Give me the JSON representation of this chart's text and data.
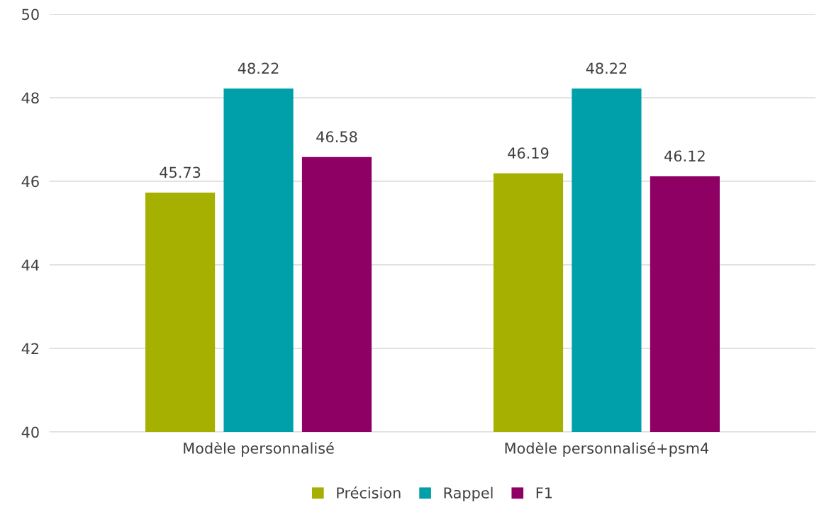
{
  "chart_data": {
    "type": "bar",
    "categories": [
      "Modèle personnalisé",
      "Modèle personnalisé+psm4"
    ],
    "series": [
      {
        "name": "Précision",
        "color": "#a5b000",
        "values": [
          45.73,
          46.19
        ]
      },
      {
        "name": "Rappel",
        "color": "#00a0aa",
        "values": [
          48.22,
          48.22
        ]
      },
      {
        "name": "F1",
        "color": "#8e0064",
        "values": [
          46.58,
          46.12
        ]
      }
    ],
    "ylim": [
      40,
      50
    ],
    "yticks": [
      40,
      42,
      44,
      46,
      48,
      50
    ],
    "grid": "y",
    "legend": "bottom",
    "data_labels": true
  }
}
